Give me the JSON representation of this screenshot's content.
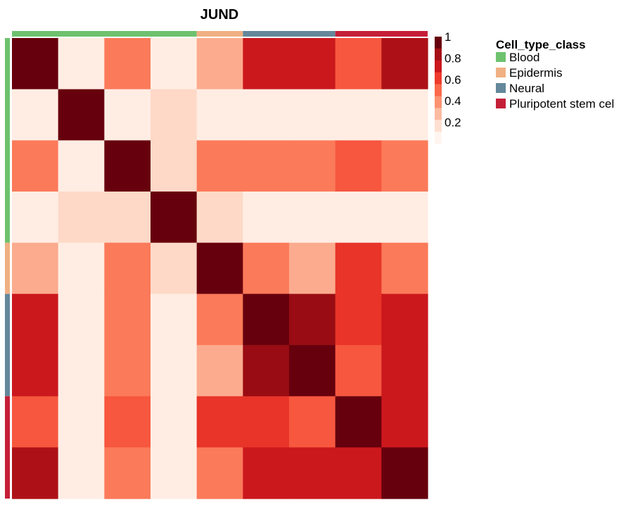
{
  "chart_data": {
    "type": "heatmap",
    "title": "JUND",
    "row_count": 9,
    "col_count": 9,
    "values": [
      [
        1.0,
        0.05,
        0.45,
        0.05,
        0.3,
        0.75,
        0.75,
        0.55,
        0.85
      ],
      [
        0.05,
        1.0,
        0.05,
        0.15,
        0.05,
        0.05,
        0.05,
        0.05,
        0.05
      ],
      [
        0.45,
        0.05,
        1.0,
        0.15,
        0.45,
        0.45,
        0.45,
        0.55,
        0.45
      ],
      [
        0.05,
        0.15,
        0.15,
        1.0,
        0.15,
        0.05,
        0.05,
        0.05,
        0.05
      ],
      [
        0.3,
        0.05,
        0.45,
        0.15,
        1.0,
        0.45,
        0.3,
        0.65,
        0.45
      ],
      [
        0.75,
        0.05,
        0.45,
        0.05,
        0.45,
        1.0,
        0.9,
        0.65,
        0.75
      ],
      [
        0.75,
        0.05,
        0.45,
        0.05,
        0.3,
        0.9,
        1.0,
        0.55,
        0.75
      ],
      [
        0.55,
        0.05,
        0.55,
        0.05,
        0.65,
        0.65,
        0.55,
        1.0,
        0.75
      ],
      [
        0.85,
        0.05,
        0.45,
        0.05,
        0.45,
        0.75,
        0.75,
        0.75,
        1.0
      ]
    ],
    "annotation": {
      "title": "Cell_type_class",
      "classes": [
        {
          "name": "Blood",
          "color": "#6ec26e",
          "count": 4
        },
        {
          "name": "Epidermis",
          "color": "#f0b083",
          "count": 1
        },
        {
          "name": "Neural",
          "color": "#64879a",
          "count": 2
        },
        {
          "name": "Pluripotent stem cel",
          "color": "#c51f38",
          "count": 2
        }
      ]
    },
    "colorbar": {
      "ticks": [
        "1",
        "0.8",
        "0.6",
        "0.4",
        "0.2"
      ],
      "tick_values": [
        1.0,
        0.8,
        0.6,
        0.4,
        0.2
      ],
      "range": [
        0,
        1
      ],
      "palette": [
        "#fff5f0",
        "#fee0d2",
        "#fcbba1",
        "#fc9272",
        "#fb6a4a",
        "#ef3b2c",
        "#cb181d",
        "#a50f15",
        "#67000d"
      ]
    }
  }
}
